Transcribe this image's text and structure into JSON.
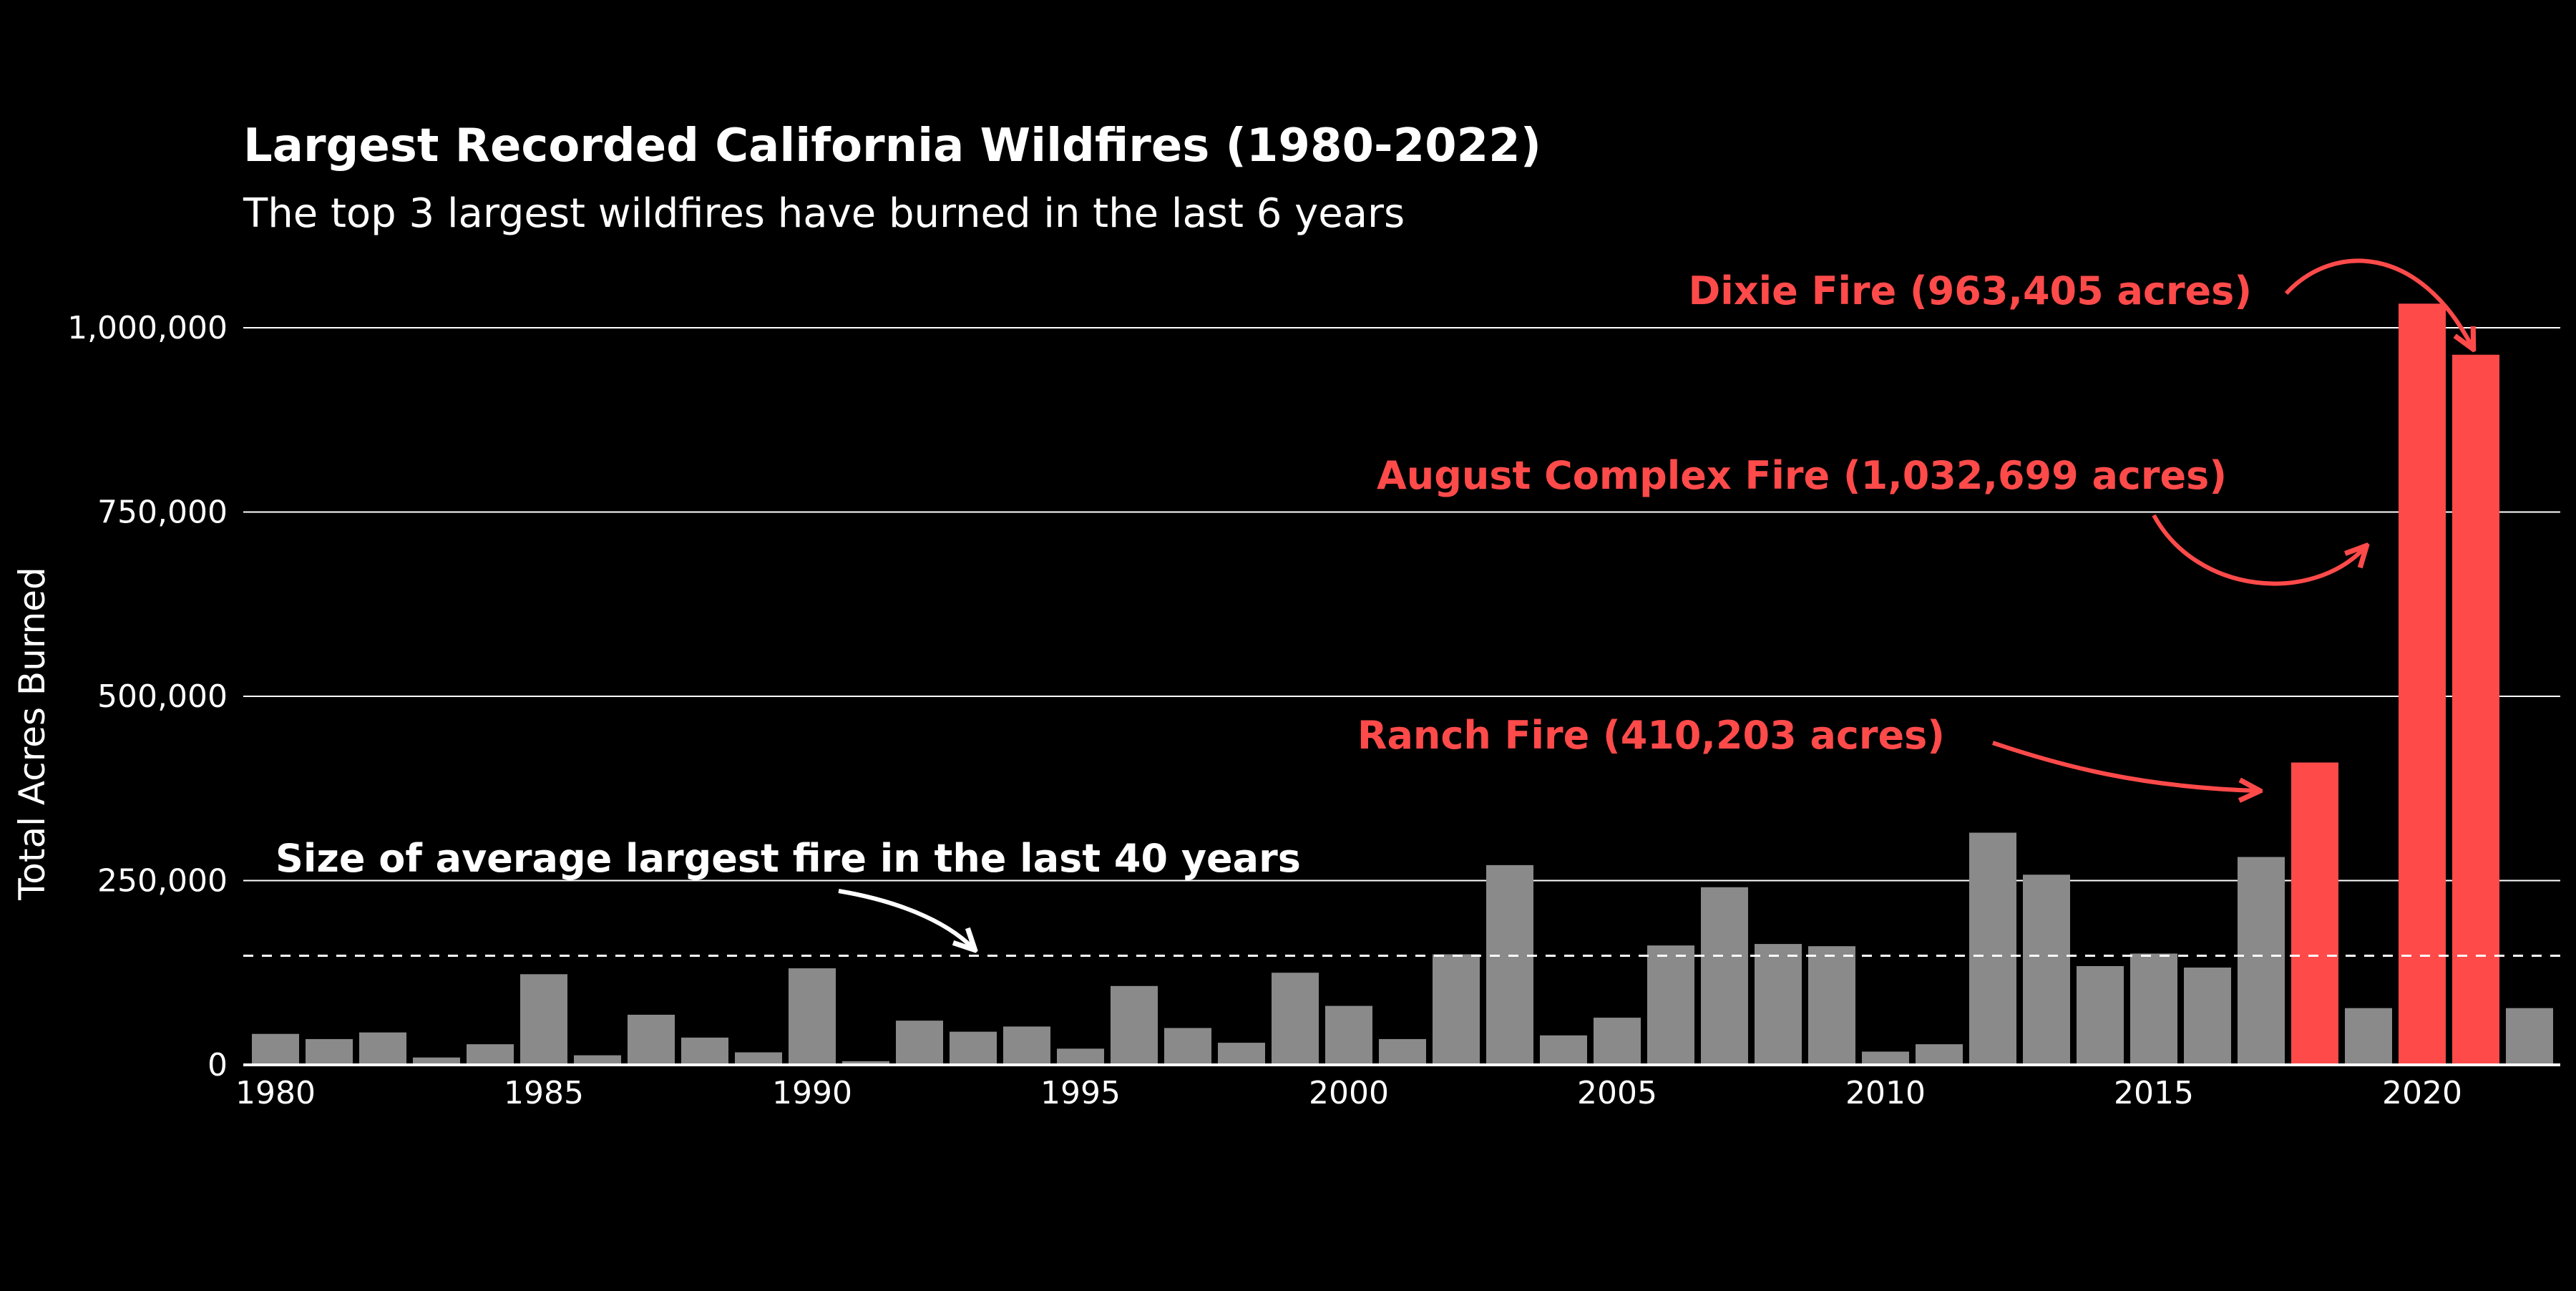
{
  "chart_data": {
    "type": "bar",
    "title": "Largest Recorded California Wildfires (1980-2022)",
    "subtitle": "The top 3 largest wildfires have burned in the last 6 years",
    "ylabel": "Total Acres Burned",
    "xlabel": "",
    "ylim": [
      0,
      1000000
    ],
    "yticks": [
      0,
      250000,
      500000,
      750000,
      1000000
    ],
    "ytick_labels": [
      "0",
      "250,000",
      "500,000",
      "750,000",
      "1,000,000"
    ],
    "xticks": [
      1980,
      1985,
      1990,
      1995,
      2000,
      2005,
      2010,
      2015,
      2020
    ],
    "xtick_labels": [
      "1980",
      "1985",
      "1990",
      "1995",
      "2000",
      "2005",
      "2010",
      "2015",
      "2020"
    ],
    "grid": "horizontal",
    "average_line": 148000,
    "years": [
      1980,
      1981,
      1982,
      1983,
      1984,
      1985,
      1986,
      1987,
      1988,
      1989,
      1990,
      1991,
      1992,
      1993,
      1994,
      1995,
      1996,
      1997,
      1998,
      1999,
      2000,
      2001,
      2002,
      2003,
      2004,
      2005,
      2006,
      2007,
      2008,
      2009,
      2010,
      2011,
      2012,
      2013,
      2014,
      2015,
      2016,
      2017,
      2018,
      2019,
      2020,
      2021,
      2022
    ],
    "values": [
      42000,
      35000,
      44000,
      10000,
      28000,
      123000,
      13000,
      68000,
      37000,
      17000,
      131000,
      5000,
      60000,
      45000,
      52000,
      22000,
      107000,
      50000,
      30000,
      125000,
      80000,
      35000,
      150000,
      271000,
      40000,
      64000,
      162000,
      241000,
      164000,
      161000,
      18000,
      28000,
      315000,
      258000,
      134000,
      151000,
      132000,
      282000,
      410203,
      77000,
      1032699,
      963405,
      77000
    ],
    "highlighted_years": [
      2018,
      2020,
      2021
    ],
    "colors": {
      "default": "#8a8a8a",
      "highlight": "#ff4a4a",
      "background": "#000000",
      "text": "#ffffff",
      "grid": "#ffffff"
    },
    "annotations": [
      {
        "text": "Dixie Fire (963,405 acres)",
        "color": "#ff4a4a"
      },
      {
        "text": "August Complex Fire (1,032,699 acres)",
        "color": "#ff4a4a"
      },
      {
        "text": "Ranch Fire (410,203 acres)",
        "color": "#ff4a4a"
      },
      {
        "text": "Size of average largest fire in the last 40 years",
        "color": "#ffffff"
      }
    ]
  }
}
